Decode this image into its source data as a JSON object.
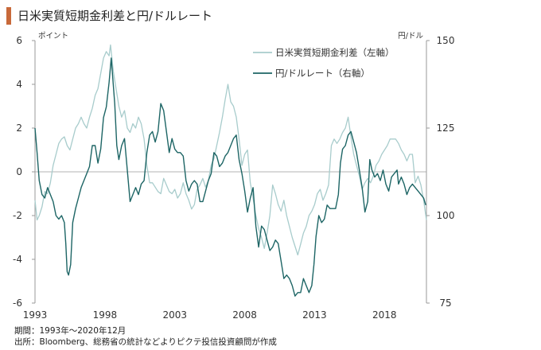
{
  "title": "日米実質短期金利差と円/ドルレート",
  "colors": {
    "accent": "#c8693a",
    "spread": "#a8cccc",
    "fx": "#1d6565"
  },
  "footer": {
    "period": "期間：1993年～2020年12月",
    "source": "出所：Bloomberg、総務省の統計などよりピクテ投信投資顧問が作成"
  },
  "chart_data": {
    "type": "line",
    "xlim": [
      1993.0,
      2021.0
    ],
    "x_ticks": [
      1993,
      1998,
      2003,
      2008,
      2013,
      2018
    ],
    "left_axis": {
      "unit_label": "ポイント",
      "ylim": [
        -6,
        6
      ],
      "ticks": [
        -6,
        -4,
        -2,
        0,
        2,
        4,
        6
      ]
    },
    "right_axis": {
      "unit_label": "円/ドル",
      "ylim": [
        75,
        150
      ],
      "ticks": [
        75,
        100,
        125,
        150
      ]
    },
    "grid": false,
    "zero_line": 0,
    "legend": "top-right",
    "series": [
      {
        "name": "日米実質短期金利差（左軸）",
        "axis": "left",
        "color": "#a8cccc",
        "points": [
          [
            1993.0,
            -1.3
          ],
          [
            1993.15,
            -2.2
          ],
          [
            1993.3,
            -2.0
          ],
          [
            1993.5,
            -1.6
          ],
          [
            1993.7,
            -0.9
          ],
          [
            1993.9,
            -1.0
          ],
          [
            1994.1,
            -0.5
          ],
          [
            1994.3,
            0.3
          ],
          [
            1994.5,
            0.8
          ],
          [
            1994.7,
            1.3
          ],
          [
            1994.9,
            1.5
          ],
          [
            1995.1,
            1.6
          ],
          [
            1995.3,
            1.2
          ],
          [
            1995.5,
            1.0
          ],
          [
            1995.7,
            1.5
          ],
          [
            1995.9,
            2.0
          ],
          [
            1996.1,
            2.2
          ],
          [
            1996.3,
            2.5
          ],
          [
            1996.5,
            2.2
          ],
          [
            1996.7,
            2.0
          ],
          [
            1996.9,
            2.5
          ],
          [
            1997.1,
            2.9
          ],
          [
            1997.3,
            3.5
          ],
          [
            1997.5,
            3.8
          ],
          [
            1997.7,
            4.5
          ],
          [
            1997.9,
            5.2
          ],
          [
            1998.1,
            5.5
          ],
          [
            1998.3,
            5.3
          ],
          [
            1998.4,
            5.8
          ],
          [
            1998.6,
            4.6
          ],
          [
            1998.8,
            3.8
          ],
          [
            1999.0,
            3.0
          ],
          [
            1999.2,
            2.5
          ],
          [
            1999.4,
            2.8
          ],
          [
            1999.6,
            2.0
          ],
          [
            1999.8,
            1.8
          ],
          [
            2000.0,
            2.2
          ],
          [
            2000.2,
            2.0
          ],
          [
            2000.4,
            2.5
          ],
          [
            2000.6,
            2.2
          ],
          [
            2000.8,
            1.5
          ],
          [
            2001.0,
            0.3
          ],
          [
            2001.2,
            -0.5
          ],
          [
            2001.4,
            -0.5
          ],
          [
            2001.6,
            -0.7
          ],
          [
            2001.8,
            -0.9
          ],
          [
            2002.0,
            -1.0
          ],
          [
            2002.2,
            -0.3
          ],
          [
            2002.4,
            -0.6
          ],
          [
            2002.6,
            -0.9
          ],
          [
            2002.8,
            -1.0
          ],
          [
            2003.0,
            -0.8
          ],
          [
            2003.2,
            -1.2
          ],
          [
            2003.4,
            -1.0
          ],
          [
            2003.6,
            -0.5
          ],
          [
            2003.8,
            -1.0
          ],
          [
            2004.0,
            -1.3
          ],
          [
            2004.2,
            -1.7
          ],
          [
            2004.4,
            -1.5
          ],
          [
            2004.6,
            -0.8
          ],
          [
            2004.8,
            -0.6
          ],
          [
            2005.0,
            -0.3
          ],
          [
            2005.2,
            -0.7
          ],
          [
            2005.4,
            -0.4
          ],
          [
            2005.6,
            0.3
          ],
          [
            2005.8,
            0.6
          ],
          [
            2006.0,
            1.2
          ],
          [
            2006.2,
            1.8
          ],
          [
            2006.4,
            2.5
          ],
          [
            2006.6,
            3.3
          ],
          [
            2006.8,
            4.0
          ],
          [
            2007.0,
            3.2
          ],
          [
            2007.2,
            3.0
          ],
          [
            2007.4,
            2.5
          ],
          [
            2007.6,
            1.5
          ],
          [
            2007.8,
            0.3
          ],
          [
            2008.0,
            0.8
          ],
          [
            2008.2,
            1.0
          ],
          [
            2008.4,
            -0.5
          ],
          [
            2008.6,
            -1.2
          ],
          [
            2008.8,
            -2.0
          ],
          [
            2009.0,
            -2.6
          ],
          [
            2009.2,
            -3.0
          ],
          [
            2009.4,
            -3.5
          ],
          [
            2009.6,
            -2.8
          ],
          [
            2009.8,
            -2.0
          ],
          [
            2010.0,
            -0.6
          ],
          [
            2010.2,
            -1.0
          ],
          [
            2010.4,
            -1.5
          ],
          [
            2010.6,
            -1.8
          ],
          [
            2010.8,
            -1.3
          ],
          [
            2011.0,
            -2.0
          ],
          [
            2011.2,
            -2.5
          ],
          [
            2011.4,
            -3.0
          ],
          [
            2011.6,
            -3.4
          ],
          [
            2011.8,
            -3.8
          ],
          [
            2012.0,
            -3.3
          ],
          [
            2012.2,
            -2.8
          ],
          [
            2012.4,
            -2.5
          ],
          [
            2012.6,
            -2.0
          ],
          [
            2012.8,
            -1.8
          ],
          [
            2013.0,
            -1.5
          ],
          [
            2013.2,
            -1.0
          ],
          [
            2013.4,
            -0.8
          ],
          [
            2013.6,
            -1.3
          ],
          [
            2013.8,
            -1.0
          ],
          [
            2014.0,
            -0.6
          ],
          [
            2014.2,
            1.2
          ],
          [
            2014.4,
            1.5
          ],
          [
            2014.6,
            1.3
          ],
          [
            2014.8,
            1.5
          ],
          [
            2015.0,
            1.8
          ],
          [
            2015.2,
            2.0
          ],
          [
            2015.4,
            2.5
          ],
          [
            2015.6,
            1.6
          ],
          [
            2015.8,
            0.8
          ],
          [
            2016.0,
            0.3
          ],
          [
            2016.2,
            -0.2
          ],
          [
            2016.4,
            -0.8
          ],
          [
            2016.6,
            -0.5
          ],
          [
            2016.8,
            -0.3
          ],
          [
            2017.0,
            -0.5
          ],
          [
            2017.2,
            -0.2
          ],
          [
            2017.4,
            0.3
          ],
          [
            2017.6,
            0.5
          ],
          [
            2017.8,
            0.8
          ],
          [
            2018.0,
            1.0
          ],
          [
            2018.2,
            1.2
          ],
          [
            2018.4,
            1.5
          ],
          [
            2018.6,
            1.5
          ],
          [
            2018.8,
            1.5
          ],
          [
            2019.0,
            1.3
          ],
          [
            2019.2,
            1.0
          ],
          [
            2019.4,
            0.8
          ],
          [
            2019.6,
            0.5
          ],
          [
            2019.8,
            0.8
          ],
          [
            2020.0,
            0.8
          ],
          [
            2020.2,
            -0.5
          ],
          [
            2020.4,
            -0.2
          ],
          [
            2020.6,
            -0.6
          ],
          [
            2020.8,
            -1.3
          ],
          [
            2021.0,
            -2.2
          ]
        ]
      },
      {
        "name": "円/ドルレート（右軸）",
        "axis": "right",
        "color": "#1d6565",
        "points": [
          [
            1993.0,
            125
          ],
          [
            1993.15,
            118
          ],
          [
            1993.3,
            110
          ],
          [
            1993.5,
            106
          ],
          [
            1993.7,
            105
          ],
          [
            1993.9,
            108
          ],
          [
            1994.1,
            106
          ],
          [
            1994.3,
            104
          ],
          [
            1994.5,
            100
          ],
          [
            1994.7,
            99
          ],
          [
            1994.9,
            100
          ],
          [
            1995.1,
            98
          ],
          [
            1995.2,
            92
          ],
          [
            1995.3,
            84
          ],
          [
            1995.4,
            83
          ],
          [
            1995.55,
            86
          ],
          [
            1995.7,
            98
          ],
          [
            1995.9,
            102
          ],
          [
            1996.1,
            105
          ],
          [
            1996.3,
            108
          ],
          [
            1996.5,
            110
          ],
          [
            1996.7,
            112
          ],
          [
            1996.9,
            114
          ],
          [
            1997.1,
            120
          ],
          [
            1997.3,
            120
          ],
          [
            1997.5,
            115
          ],
          [
            1997.7,
            119
          ],
          [
            1997.9,
            128
          ],
          [
            1998.1,
            131
          ],
          [
            1998.3,
            138
          ],
          [
            1998.45,
            145
          ],
          [
            1998.55,
            140
          ],
          [
            1998.7,
            132
          ],
          [
            1998.85,
            120
          ],
          [
            1999.0,
            116
          ],
          [
            1999.2,
            120
          ],
          [
            1999.4,
            122
          ],
          [
            1999.6,
            113
          ],
          [
            1999.8,
            104
          ],
          [
            2000.0,
            106
          ],
          [
            2000.2,
            108
          ],
          [
            2000.4,
            106
          ],
          [
            2000.6,
            109
          ],
          [
            2000.8,
            110
          ],
          [
            2001.0,
            118
          ],
          [
            2001.2,
            123
          ],
          [
            2001.4,
            124
          ],
          [
            2001.6,
            121
          ],
          [
            2001.8,
            124
          ],
          [
            2002.0,
            132
          ],
          [
            2002.2,
            130
          ],
          [
            2002.4,
            124
          ],
          [
            2002.6,
            118
          ],
          [
            2002.8,
            122
          ],
          [
            2003.0,
            119
          ],
          [
            2003.2,
            118
          ],
          [
            2003.4,
            118
          ],
          [
            2003.6,
            117
          ],
          [
            2003.8,
            110
          ],
          [
            2004.0,
            107
          ],
          [
            2004.2,
            109
          ],
          [
            2004.4,
            110
          ],
          [
            2004.6,
            109
          ],
          [
            2004.8,
            104
          ],
          [
            2005.0,
            104
          ],
          [
            2005.2,
            107
          ],
          [
            2005.4,
            110
          ],
          [
            2005.6,
            112
          ],
          [
            2005.8,
            118
          ],
          [
            2006.0,
            117
          ],
          [
            2006.2,
            114
          ],
          [
            2006.4,
            115
          ],
          [
            2006.6,
            117
          ],
          [
            2006.8,
            118
          ],
          [
            2007.0,
            120
          ],
          [
            2007.2,
            122
          ],
          [
            2007.4,
            123
          ],
          [
            2007.6,
            116
          ],
          [
            2007.8,
            112
          ],
          [
            2008.0,
            107
          ],
          [
            2008.2,
            101
          ],
          [
            2008.4,
            105
          ],
          [
            2008.6,
            108
          ],
          [
            2008.8,
            97
          ],
          [
            2009.0,
            91
          ],
          [
            2009.2,
            97
          ],
          [
            2009.4,
            96
          ],
          [
            2009.6,
            93
          ],
          [
            2009.8,
            90
          ],
          [
            2010.0,
            91
          ],
          [
            2010.2,
            93
          ],
          [
            2010.4,
            92
          ],
          [
            2010.6,
            87
          ],
          [
            2010.8,
            82
          ],
          [
            2011.0,
            83
          ],
          [
            2011.2,
            82
          ],
          [
            2011.4,
            80
          ],
          [
            2011.6,
            77
          ],
          [
            2011.8,
            78
          ],
          [
            2012.0,
            78
          ],
          [
            2012.2,
            82
          ],
          [
            2012.4,
            80
          ],
          [
            2012.6,
            78
          ],
          [
            2012.8,
            80
          ],
          [
            2012.95,
            86
          ],
          [
            2013.1,
            94
          ],
          [
            2013.3,
            100
          ],
          [
            2013.5,
            98
          ],
          [
            2013.7,
            99
          ],
          [
            2013.9,
            103
          ],
          [
            2014.1,
            102
          ],
          [
            2014.3,
            102
          ],
          [
            2014.5,
            102
          ],
          [
            2014.7,
            106
          ],
          [
            2014.85,
            115
          ],
          [
            2015.0,
            119
          ],
          [
            2015.2,
            120
          ],
          [
            2015.4,
            123
          ],
          [
            2015.6,
            124
          ],
          [
            2015.8,
            121
          ],
          [
            2016.0,
            118
          ],
          [
            2016.2,
            113
          ],
          [
            2016.4,
            108
          ],
          [
            2016.6,
            101
          ],
          [
            2016.8,
            104
          ],
          [
            2016.95,
            116
          ],
          [
            2017.1,
            113
          ],
          [
            2017.3,
            111
          ],
          [
            2017.5,
            112
          ],
          [
            2017.7,
            110
          ],
          [
            2017.9,
            113
          ],
          [
            2018.1,
            109
          ],
          [
            2018.3,
            107
          ],
          [
            2018.5,
            111
          ],
          [
            2018.7,
            112
          ],
          [
            2018.9,
            113
          ],
          [
            2019.0,
            109
          ],
          [
            2019.2,
            111
          ],
          [
            2019.4,
            109
          ],
          [
            2019.6,
            106
          ],
          [
            2019.8,
            108
          ],
          [
            2020.0,
            109
          ],
          [
            2020.2,
            108
          ],
          [
            2020.4,
            107
          ],
          [
            2020.6,
            106
          ],
          [
            2020.8,
            105
          ],
          [
            2020.95,
            103
          ]
        ]
      }
    ]
  }
}
